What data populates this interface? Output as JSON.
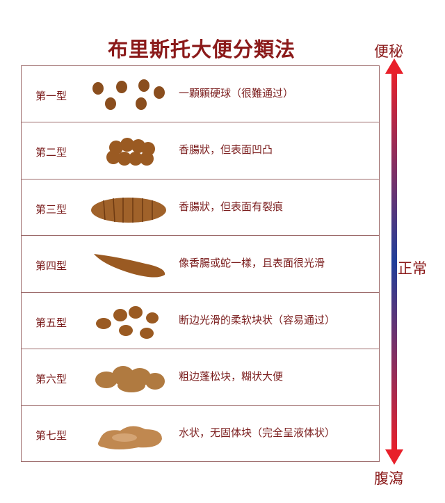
{
  "title": "布里斯托大便分類法",
  "scale": {
    "top": "便秘",
    "middle": "正常",
    "bottom": "腹瀉",
    "colors": {
      "ends": "#e8202a",
      "middle": "#1f3f9a"
    }
  },
  "rows": [
    {
      "type": "第一型",
      "description": "一顆顆硬球（很難通过）",
      "icon": "separate-hard-lumps"
    },
    {
      "type": "第二型",
      "description": "香腸狀，但表面凹凸",
      "icon": "lumpy-sausage"
    },
    {
      "type": "第三型",
      "description": "香腸狀，但表面有裂痕",
      "icon": "cracked-sausage"
    },
    {
      "type": "第四型",
      "description": "像香腸或蛇一樣，且表面很光滑",
      "icon": "smooth-snake"
    },
    {
      "type": "第五型",
      "description": "断边光滑的柔软块状（容易通过）",
      "icon": "soft-blobs"
    },
    {
      "type": "第六型",
      "description": "粗边蓬松块，糊状大便",
      "icon": "fluffy-mushy"
    },
    {
      "type": "第七型",
      "description": "水状，无固体块（完全呈液体状）",
      "icon": "watery-liquid"
    }
  ],
  "stool_color": "#9a5a22"
}
